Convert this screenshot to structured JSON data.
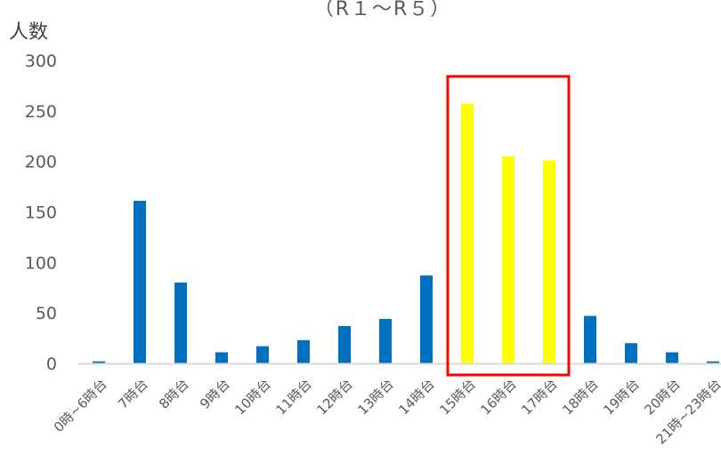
{
  "chart_data": {
    "type": "bar",
    "subtitle": "（R１～R５）",
    "ylabel": "人数",
    "xlabel": "",
    "ylim": [
      0,
      300
    ],
    "yticks": [
      0,
      50,
      100,
      150,
      200,
      250,
      300
    ],
    "grid": false,
    "categories": [
      "0時~6時台",
      "7時台",
      "8時台",
      "9時台",
      "10時台",
      "11時台",
      "12時台",
      "13時台",
      "14時台",
      "15時台",
      "16時台",
      "17時台",
      "18時台",
      "19時台",
      "20時台",
      "21時~23時台"
    ],
    "values": [
      2,
      161,
      80,
      11,
      17,
      23,
      37,
      44,
      87,
      257,
      205,
      201,
      47,
      20,
      11,
      2
    ],
    "highlighted_categories": [
      "15時台",
      "16時台",
      "17時台"
    ],
    "colors": {
      "bar": "#0070c0",
      "highlight_bar": "#ffff00",
      "highlight_box": "#ff0000",
      "axis": "#d9d9d9"
    }
  }
}
